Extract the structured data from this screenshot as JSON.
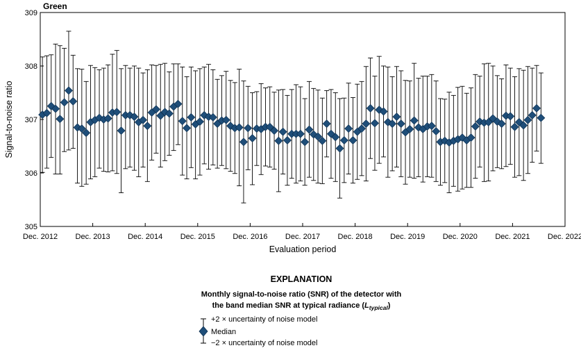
{
  "chart_data": {
    "type": "scatter",
    "panel_label": "Green",
    "xlabel": "Evaluation period",
    "ylabel": "Signal-to-noise ratio",
    "ylim": [
      305,
      309
    ],
    "y_ticks": [
      "305",
      "306",
      "307",
      "308",
      "309"
    ],
    "x_ticks": [
      "Dec. 2012",
      "Dec. 2013",
      "Dec. 2014",
      "Dec. 2015",
      "Dec. 2016",
      "Dec. 2017",
      "Dec. 2018",
      "Dec. 2019",
      "Dec. 2020",
      "Dec. 2021",
      "Dec. 2022"
    ],
    "x_start": "2012-12",
    "grid": false,
    "colors": {
      "marker": "#1f4e79",
      "marker_stroke": "#0d2f4f",
      "error_bar": "#000000"
    },
    "series": [
      {
        "name": "Median",
        "median": [
          307.09,
          307.12,
          307.25,
          307.2,
          307.01,
          307.32,
          307.54,
          307.34,
          306.85,
          306.83,
          306.75,
          306.95,
          306.99,
          307.03,
          307.0,
          307.02,
          307.13,
          307.14,
          306.79,
          307.08,
          307.08,
          307.05,
          306.95,
          306.99,
          306.88,
          307.13,
          307.19,
          307.07,
          307.14,
          307.11,
          307.24,
          307.29,
          306.97,
          306.84,
          307.04,
          306.91,
          306.96,
          307.08,
          307.05,
          307.04,
          306.92,
          306.98,
          306.99,
          306.88,
          306.84,
          306.85,
          306.58,
          306.84,
          306.65,
          306.83,
          306.82,
          306.86,
          306.86,
          306.79,
          306.6,
          306.77,
          306.61,
          306.73,
          306.73,
          306.73,
          306.58,
          306.81,
          306.72,
          306.68,
          306.6,
          306.92,
          306.73,
          306.67,
          306.46,
          306.61,
          306.83,
          306.61,
          306.77,
          306.83,
          306.92,
          307.21,
          306.93,
          307.18,
          307.15,
          306.95,
          306.92,
          307.05,
          306.92,
          306.76,
          306.82,
          306.98,
          306.85,
          306.82,
          306.87,
          306.88,
          306.78,
          306.58,
          306.6,
          306.57,
          306.6,
          306.63,
          306.66,
          306.61,
          306.66,
          306.87,
          306.96,
          306.94,
          306.95,
          307.02,
          306.96,
          306.92,
          307.07,
          307.06,
          306.86,
          306.95,
          306.89,
          306.99,
          307.08,
          307.21,
          307.03
        ],
        "upper": [
          308.17,
          308.19,
          308.21,
          308.41,
          308.38,
          308.33,
          308.65,
          308.2,
          307.95,
          307.94,
          307.71,
          308.01,
          307.97,
          307.93,
          307.96,
          308.02,
          308.22,
          308.29,
          307.95,
          308.01,
          307.96,
          308.0,
          307.96,
          307.87,
          307.93,
          308.02,
          308.01,
          308.03,
          308.05,
          307.89,
          308.04,
          308.04,
          307.98,
          307.8,
          307.98,
          307.91,
          307.95,
          307.98,
          308.03,
          307.93,
          307.75,
          307.82,
          307.9,
          307.73,
          307.69,
          307.94,
          307.72,
          307.62,
          307.5,
          307.52,
          307.67,
          307.59,
          307.61,
          307.51,
          307.55,
          307.56,
          307.45,
          307.56,
          307.65,
          307.61,
          307.39,
          307.71,
          307.58,
          307.55,
          307.4,
          307.54,
          307.56,
          307.5,
          307.39,
          307.4,
          307.68,
          307.41,
          307.66,
          307.71,
          307.99,
          308.15,
          307.81,
          308.18,
          308.0,
          307.98,
          307.8,
          307.99,
          307.91,
          307.73,
          307.72,
          308.05,
          307.77,
          307.81,
          307.81,
          307.84,
          307.72,
          307.39,
          307.38,
          307.51,
          307.45,
          307.6,
          307.62,
          307.49,
          307.59,
          307.84,
          307.81,
          308.04,
          308.05,
          308.0,
          307.82,
          307.76,
          308.02,
          307.96,
          307.8,
          307.95,
          307.92,
          307.99,
          307.96,
          308.01,
          307.87
        ],
        "lower": [
          306.01,
          306.09,
          306.29,
          305.98,
          305.98,
          306.4,
          306.43,
          306.46,
          305.81,
          305.75,
          305.79,
          305.89,
          305.93,
          306.09,
          306.03,
          306.02,
          306.04,
          305.99,
          305.63,
          306.08,
          306.11,
          306.05,
          305.93,
          306.11,
          305.84,
          306.24,
          306.37,
          306.11,
          306.23,
          306.33,
          306.42,
          306.53,
          305.96,
          305.89,
          306.1,
          305.89,
          305.96,
          306.17,
          306.07,
          306.15,
          306.09,
          306.14,
          306.08,
          306.03,
          305.99,
          305.76,
          305.44,
          306.06,
          305.78,
          306.14,
          305.97,
          306.13,
          306.11,
          306.07,
          305.65,
          305.98,
          305.77,
          305.9,
          305.81,
          305.85,
          305.77,
          305.92,
          305.86,
          305.81,
          305.8,
          306.3,
          305.9,
          305.84,
          305.53,
          305.82,
          305.98,
          305.81,
          305.88,
          305.95,
          305.85,
          306.27,
          306.05,
          306.18,
          306.3,
          305.92,
          306.04,
          306.11,
          305.93,
          305.79,
          305.92,
          305.9,
          305.93,
          305.83,
          305.93,
          305.92,
          305.84,
          305.77,
          305.82,
          305.63,
          305.75,
          305.66,
          305.7,
          305.73,
          305.73,
          305.9,
          306.11,
          305.84,
          305.85,
          306.04,
          306.1,
          306.08,
          306.12,
          306.16,
          305.92,
          305.95,
          305.86,
          305.99,
          306.2,
          306.41,
          306.18
        ]
      }
    ]
  },
  "explanation": {
    "title": "EXPLANATION",
    "desc_line1": "Monthly signal-to-noise ratio (SNR) of the detector with",
    "desc_line2_prefix": "the band median SNR at typical radiance (",
    "desc_line2_symbol": "L",
    "desc_line2_subscript": "typical",
    "desc_line2_suffix": ")",
    "upper_label": "+2 × uncertainty of noise model",
    "median_label": "Median",
    "lower_label": "−2 × uncertainty of noise model"
  }
}
